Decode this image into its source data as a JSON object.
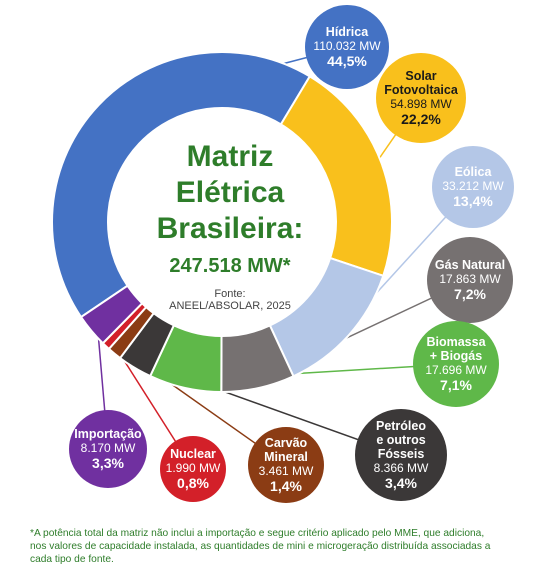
{
  "chart_data": {
    "type": "donut",
    "title": [
      "Matriz",
      "Elétrica",
      "Brasileira:"
    ],
    "total": "247.518 MW*",
    "source": [
      "Fonte:",
      "ANEEL/ABSOLAR, 2025"
    ],
    "slices": [
      {
        "name": [
          "Hídrica"
        ],
        "capacity": "110.032 MW",
        "share": "44,5%",
        "value": 44.5,
        "color": "#4472c4",
        "label_color": "#ffffff"
      },
      {
        "name": [
          "Solar",
          "Fotovoltaica"
        ],
        "capacity": "54.898 MW",
        "share": "22,2%",
        "value": 22.2,
        "color": "#f9c01c",
        "label_color": "#1a1a1a"
      },
      {
        "name": [
          "Eólica"
        ],
        "capacity": "33.212 MW",
        "share": "13,4%",
        "value": 13.4,
        "color": "#b4c7e7",
        "label_color": "#ffffff"
      },
      {
        "name": [
          "Gás Natural"
        ],
        "capacity": "17.863 MW",
        "share": "7,2%",
        "value": 7.2,
        "color": "#767171",
        "label_color": "#ffffff"
      },
      {
        "name": [
          "Biomassa",
          "+ Biogás"
        ],
        "capacity": "17.696 MW",
        "share": "7,1%",
        "value": 7.1,
        "color": "#5fb849",
        "label_color": "#ffffff"
      },
      {
        "name": [
          "Petróleo",
          "e outros",
          "Fósseis"
        ],
        "capacity": "8.366 MW",
        "share": "3,4%",
        "value": 3.4,
        "color": "#3b3838",
        "label_color": "#ffffff"
      },
      {
        "name": [
          "Carvão",
          "Mineral"
        ],
        "capacity": "3.461 MW",
        "share": "1,4%",
        "value": 1.4,
        "color": "#8b3c14",
        "label_color": "#ffffff"
      },
      {
        "name": [
          "Nuclear"
        ],
        "capacity": "1.990 MW",
        "share": "0,8%",
        "value": 0.8,
        "color": "#d32029",
        "label_color": "#ffffff"
      },
      {
        "name": [
          "Importação"
        ],
        "capacity": "8.170 MW",
        "share": "3,3%",
        "value": 3.3,
        "color": "#7030a0",
        "label_color": "#ffffff"
      }
    ]
  },
  "footnote": [
    "*A potência total da matriz não inclui a importação e segue critério aplicado pelo MME, que adiciona,",
    "nos valores de capacidade instalada, as quantidades de mini e microgeração distribuída associadas a",
    "cada tipo de fonte."
  ]
}
